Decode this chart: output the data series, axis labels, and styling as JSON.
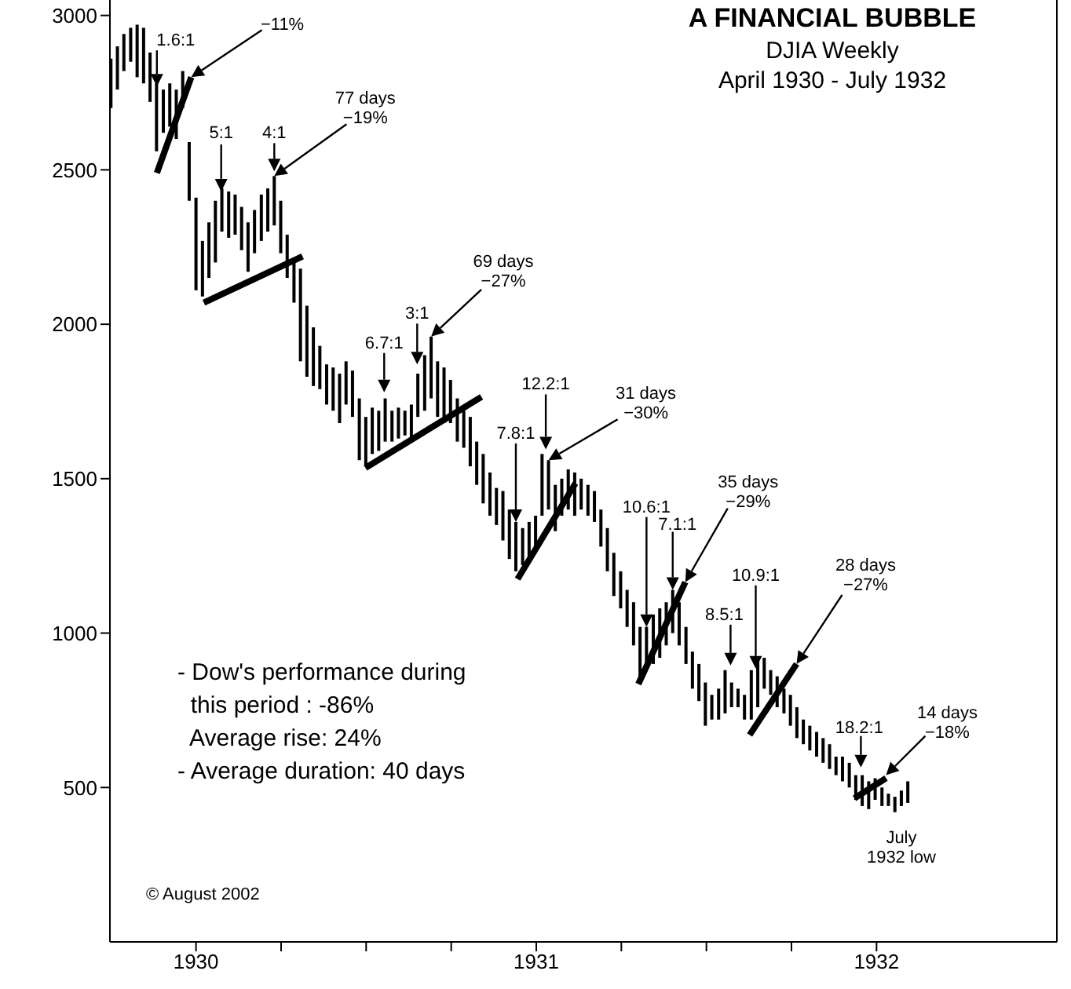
{
  "chart_data": {
    "type": "bar",
    "title": "A FINANCIAL BUBBLE",
    "subtitle": "DJIA  Weekly\nApril 1930 - July 1932",
    "xlim": [
      1929.747,
      1932.53
    ],
    "xticks": [
      1930,
      {
        "value": 1930.25,
        "label": null
      },
      {
        "value": 1930.5,
        "label": null
      },
      {
        "value": 1930.75,
        "label": null
      },
      1931,
      {
        "value": 1931.25,
        "label": null
      },
      {
        "value": 1931.5,
        "label": null
      },
      {
        "value": 1931.75,
        "label": null
      },
      1932
    ],
    "ylim": [
      0,
      3050
    ],
    "yticks": [
      500,
      1000,
      1500,
      2000,
      2500,
      3000
    ],
    "series": [
      {
        "color": "#000000",
        "x": [
          1929.75,
          1929.769,
          1929.788,
          1929.808,
          1929.827,
          1929.846,
          1929.865,
          1929.884,
          1929.904,
          1929.923,
          1929.942,
          1929.961,
          1929.98,
          1930.0,
          1930.019,
          1930.038,
          1930.057,
          1930.076,
          1930.096,
          1930.115,
          1930.134,
          1930.153,
          1930.172,
          1930.192,
          1930.211,
          1930.23,
          1930.249,
          1930.268,
          1930.288,
          1930.307,
          1930.326,
          1930.345,
          1930.364,
          1930.384,
          1930.403,
          1930.422,
          1930.441,
          1930.46,
          1930.48,
          1930.499,
          1930.518,
          1930.537,
          1930.556,
          1930.576,
          1930.595,
          1930.614,
          1930.633,
          1930.652,
          1930.672,
          1930.691,
          1930.71,
          1930.729,
          1930.748,
          1930.768,
          1930.787,
          1930.806,
          1930.825,
          1930.844,
          1930.864,
          1930.883,
          1930.902,
          1930.921,
          1930.94,
          1930.96,
          1930.979,
          1930.998,
          1931.017,
          1931.036,
          1931.056,
          1931.075,
          1931.094,
          1931.113,
          1931.132,
          1931.152,
          1931.171,
          1931.19,
          1931.209,
          1931.228,
          1931.248,
          1931.267,
          1931.286,
          1931.305,
          1931.324,
          1931.344,
          1931.363,
          1931.382,
          1931.401,
          1931.42,
          1931.44,
          1931.459,
          1931.478,
          1931.497,
          1931.516,
          1931.536,
          1931.555,
          1931.574,
          1931.593,
          1931.612,
          1931.632,
          1931.651,
          1931.67,
          1931.689,
          1931.708,
          1931.728,
          1931.747,
          1931.766,
          1931.785,
          1931.804,
          1931.824,
          1931.843,
          1931.862,
          1931.881,
          1931.9,
          1931.92,
          1931.939,
          1931.958,
          1931.977,
          1931.996,
          1932.016,
          1932.035,
          1932.054,
          1932.073,
          1932.092
        ],
        "base": [
          2700,
          2760,
          2820,
          2850,
          2800,
          2780,
          2720,
          2560,
          2620,
          2640,
          2600,
          2700,
          2400,
          2110,
          2090,
          2150,
          2200,
          2300,
          2280,
          2290,
          2240,
          2170,
          2230,
          2270,
          2300,
          2320,
          2230,
          2150,
          2070,
          1880,
          1830,
          1800,
          1790,
          1740,
          1720,
          1680,
          1740,
          1700,
          1560,
          1540,
          1580,
          1590,
          1620,
          1620,
          1630,
          1640,
          1630,
          1700,
          1720,
          1760,
          1700,
          1680,
          1680,
          1620,
          1600,
          1540,
          1480,
          1420,
          1380,
          1350,
          1300,
          1240,
          1200,
          1220,
          1240,
          1260,
          1380,
          1400,
          1330,
          1380,
          1400,
          1380,
          1400,
          1380,
          1360,
          1280,
          1200,
          1120,
          1080,
          1020,
          960,
          860,
          880,
          900,
          920,
          960,
          1000,
          960,
          900,
          820,
          780,
          700,
          720,
          720,
          740,
          760,
          760,
          720,
          720,
          760,
          820,
          800,
          760,
          740,
          700,
          660,
          640,
          620,
          600,
          580,
          560,
          540,
          520,
          500,
          460,
          440,
          430,
          460,
          440,
          440,
          420,
          440,
          450
        ],
        "values": [
          160,
          140,
          120,
          110,
          170,
          180,
          160,
          220,
          140,
          140,
          160,
          120,
          190,
          300,
          180,
          180,
          200,
          140,
          150,
          130,
          140,
          160,
          140,
          150,
          140,
          160,
          170,
          140,
          140,
          300,
          230,
          190,
          140,
          130,
          140,
          160,
          140,
          150,
          200,
          160,
          150,
          130,
          140,
          100,
          100,
          80,
          110,
          140,
          180,
          200,
          180,
          180,
          140,
          140,
          120,
          160,
          140,
          160,
          140,
          120,
          160,
          160,
          160,
          120,
          120,
          120,
          200,
          160,
          150,
          120,
          130,
          140,
          100,
          100,
          100,
          120,
          140,
          140,
          120,
          120,
          140,
          160,
          140,
          160,
          160,
          140,
          140,
          140,
          120,
          120,
          120,
          140,
          80,
          100,
          140,
          80,
          60,
          80,
          160,
          160,
          100,
          80,
          100,
          80,
          100,
          100,
          80,
          80,
          80,
          80,
          80,
          60,
          80,
          80,
          80,
          100,
          90,
          70,
          60,
          40,
          50,
          50,
          70
        ]
      },
      {
        "type": "line",
        "color": "#000000",
        "x": [
          1929.885,
          1929.986
        ],
        "values": [
          2490,
          2800
        ]
      },
      {
        "type": "line",
        "color": "#000000",
        "x": [
          1930.023,
          1930.313
        ],
        "values": [
          2070,
          2220
        ]
      },
      {
        "type": "line",
        "color": "#000000",
        "x": [
          1930.498,
          1930.839
        ],
        "values": [
          1535,
          1765
        ]
      },
      {
        "type": "line",
        "color": "#000000",
        "x": [
          1930.945,
          1931.115
        ],
        "values": [
          1175,
          1485
        ]
      },
      {
        "type": "line",
        "color": "#000000",
        "x": [
          1931.3,
          1931.438
        ],
        "values": [
          835,
          1165
        ]
      },
      {
        "type": "line",
        "color": "#000000",
        "x": [
          1931.627,
          1931.765
        ],
        "values": [
          670,
          900
        ]
      },
      {
        "type": "line",
        "color": "#000000",
        "x": [
          1931.935,
          1932.028
        ],
        "values": [
          465,
          530
        ]
      }
    ],
    "annotations": [
      {
        "text": "1.6:1",
        "x": 1929.885,
        "y": 2770
      },
      {
        "text": "−11%",
        "x": 1929.986,
        "y": 2800
      },
      {
        "text": "5:1",
        "x": 1930.074,
        "y": 2430
      },
      {
        "text": "4:1",
        "x": 1930.23,
        "y": 2495
      },
      {
        "text": "77 days\n−19%",
        "x": 1930.23,
        "y": 2480
      },
      {
        "text": "6.7:1",
        "x": 1930.553,
        "y": 1780
      },
      {
        "text": "3:1",
        "x": 1930.65,
        "y": 1870
      },
      {
        "text": "69 days\n−27%",
        "x": 1930.691,
        "y": 1960
      },
      {
        "text": "7.8:1",
        "x": 1930.94,
        "y": 1360
      },
      {
        "text": "12.2:1",
        "x": 1931.028,
        "y": 1595
      },
      {
        "text": "31 days\n−30%",
        "x": 1931.036,
        "y": 1560
      },
      {
        "text": "10.6:1",
        "x": 1931.324,
        "y": 1020
      },
      {
        "text": "7.1:1",
        "x": 1931.401,
        "y": 1140
      },
      {
        "text": "35 days\n−29%",
        "x": 1931.438,
        "y": 1165
      },
      {
        "text": "8.5:1",
        "x": 1931.571,
        "y": 895
      },
      {
        "text": "10.9:1",
        "x": 1931.645,
        "y": 885
      },
      {
        "text": "28 days\n−27%",
        "x": 1931.765,
        "y": 900
      },
      {
        "text": "18.2:1",
        "x": 1931.954,
        "y": 565
      },
      {
        "text": "14 days\n−18%",
        "x": 1932.028,
        "y": 540
      },
      {
        "text": "July\n1932 low",
        "x": 1932.073,
        "y": 420
      },
      "- Dow's performance during\n  this period : -86%\n  Average rise: 24%\n- Average duration: 40 days",
      "© August 2002"
    ]
  }
}
